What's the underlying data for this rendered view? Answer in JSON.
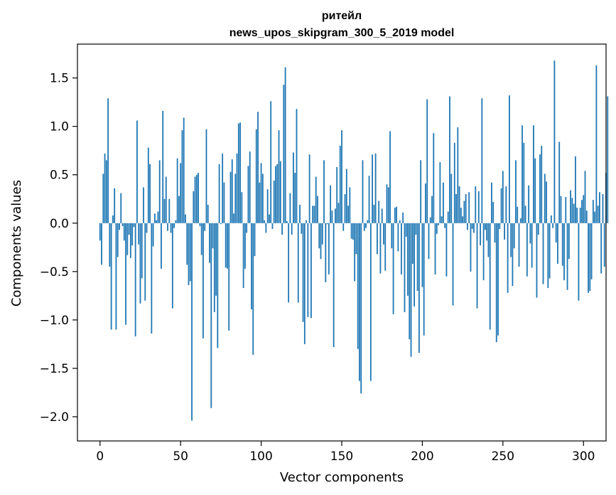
{
  "chart_data": {
    "type": "bar",
    "title": "ритейл",
    "subtitle": "news_upos_skipgram_300_5_2019 model",
    "xlabel": "Vector components",
    "ylabel": "Components values",
    "xlim": [
      -14,
      314
    ],
    "ylim": [
      -2.25,
      1.85
    ],
    "xticks": [
      0,
      50,
      100,
      150,
      200,
      250,
      300
    ],
    "yticks": [
      -2.0,
      -1.5,
      -1.0,
      -0.5,
      0.0,
      0.5,
      1.0,
      1.5
    ],
    "xtick_labels": [
      "0",
      "50",
      "100",
      "150",
      "200",
      "250",
      "300"
    ],
    "ytick_labels": [
      "−2.0",
      "−1.5",
      "−1.0",
      "−0.5",
      "0.0",
      "0.5",
      "1.0",
      "1.5"
    ],
    "grid": false,
    "color": "#1f77b4",
    "values": [
      -0.18,
      -0.43,
      0.51,
      0.72,
      0.65,
      1.29,
      -0.45,
      -1.1,
      0.08,
      0.36,
      -1.1,
      -0.35,
      -0.07,
      0.31,
      -0.03,
      -0.18,
      -1.05,
      -0.33,
      -0.12,
      -0.36,
      -0.23,
      -0.04,
      -1.17,
      1.06,
      -0.22,
      -0.83,
      -0.57,
      0.37,
      -0.8,
      -0.1,
      0.78,
      0.61,
      -1.14,
      -0.24,
      0.1,
      0.03,
      0.12,
      0.65,
      -0.47,
      1.16,
      0.25,
      0.48,
      -0.08,
      0.25,
      -0.1,
      -0.88,
      -0.05,
      0.03,
      0.67,
      0.28,
      0.62,
      0.96,
      1.09,
      0.09,
      -0.43,
      -0.64,
      -0.6,
      -2.04,
      0.33,
      0.48,
      0.5,
      0.52,
      -0.03,
      -0.33,
      -1.19,
      -0.08,
      0.97,
      0.19,
      -0.41,
      -1.91,
      -0.26,
      -0.92,
      -0.75,
      -1.29,
      0.61,
      -0.01,
      0.72,
      0.42,
      -0.46,
      -0.47,
      -1.11,
      0.53,
      0.66,
      0.1,
      0.51,
      0.72,
      1.03,
      1.04,
      0.32,
      -0.67,
      -0.47,
      -0.1,
      0.59,
      0.74,
      -0.89,
      -1.36,
      -0.34,
      0.97,
      1.15,
      0.42,
      0.62,
      0.51,
      0.03,
      -0.1,
      0.35,
      0.09,
      1.26,
      -0.06,
      0.44,
      0.59,
      0.61,
      0.96,
      0.64,
      -0.12,
      1.43,
      1.61,
      0.02,
      -0.82,
      0.31,
      -0.12,
      0.73,
      0.52,
      1.18,
      -0.82,
      0.19,
      -0.11,
      -1.02,
      -1.25,
      0.03,
      -0.97,
      0.71,
      -0.98,
      0.18,
      0.18,
      0.48,
      0.28,
      -0.26,
      -0.37,
      -0.22,
      0.65,
      -0.61,
      -0.01,
      -0.53,
      0.39,
      0.13,
      -1.28,
      0.15,
      0.58,
      0.21,
      0.8,
      0.96,
      -0.08,
      0.3,
      0.56,
      0.18,
      0.37,
      -0.16,
      -0.17,
      -0.6,
      -0.32,
      -1.3,
      -1.63,
      -1.76,
      0.65,
      -0.08,
      -0.05,
      0.03,
      0.49,
      -1.63,
      0.71,
      0.19,
      0.72,
      -0.32,
      0.23,
      -0.52,
      0.15,
      -0.22,
      -0.49,
      0.4,
      0.37,
      0.95,
      -0.26,
      -0.94,
      0.16,
      0.17,
      -0.29,
      0.03,
      -0.53,
      0.11,
      -0.92,
      -0.14,
      -0.75,
      -1.2,
      -1.38,
      -0.42,
      -0.86,
      -0.12,
      -0.7,
      -1.34,
      0.65,
      -0.66,
      -1.16,
      0.41,
      1.28,
      -0.37,
      0.06,
      0.28,
      0.93,
      -0.53,
      -0.11,
      -0.02,
      0.63,
      0.07,
      0.42,
      -0.05,
      -0.55,
      0.12,
      1.31,
      0.51,
      -0.85,
      0.83,
      0.3,
      0.99,
      0.38,
      0.16,
      0.07,
      0.23,
      0.3,
      -0.07,
      0.32,
      -0.5,
      -0.06,
      -0.1,
      0.38,
      -0.88,
      0.33,
      -0.23,
      1.29,
      -0.59,
      -0.07,
      -0.18,
      -0.35,
      -1.1,
      0.42,
      0.22,
      -0.2,
      -1.23,
      -1.16,
      -0.06,
      0.36,
      0.54,
      -0.17,
      0.38,
      -0.72,
      1.32,
      -0.35,
      -0.65,
      -0.26,
      0.65,
      0.17,
      -0.45,
      0.05,
      1.01,
      0.83,
      0.18,
      -0.55,
      0.39,
      -0.21,
      -0.46,
      1.01,
      0.67,
      -0.77,
      -0.12,
      0.71,
      0.8,
      -0.63,
      0.51,
      0.43,
      -0.67,
      -0.57,
      0.08,
      -0.05,
      1.68,
      -0.2,
      -0.42,
      0.84,
      0.28,
      -0.44,
      -0.59,
      0.27,
      -0.69,
      -0.37,
      0.34,
      0.26,
      0.2,
      0.69,
      0.16,
      -0.8,
      0.16,
      0.24,
      0.29,
      0.54,
      0.13,
      -0.72,
      -0.7,
      -0.58,
      0.24,
      0.12,
      1.63,
      0.18,
      0.32,
      -0.52,
      0.3,
      -0.45,
      0.52,
      1.31
    ]
  }
}
